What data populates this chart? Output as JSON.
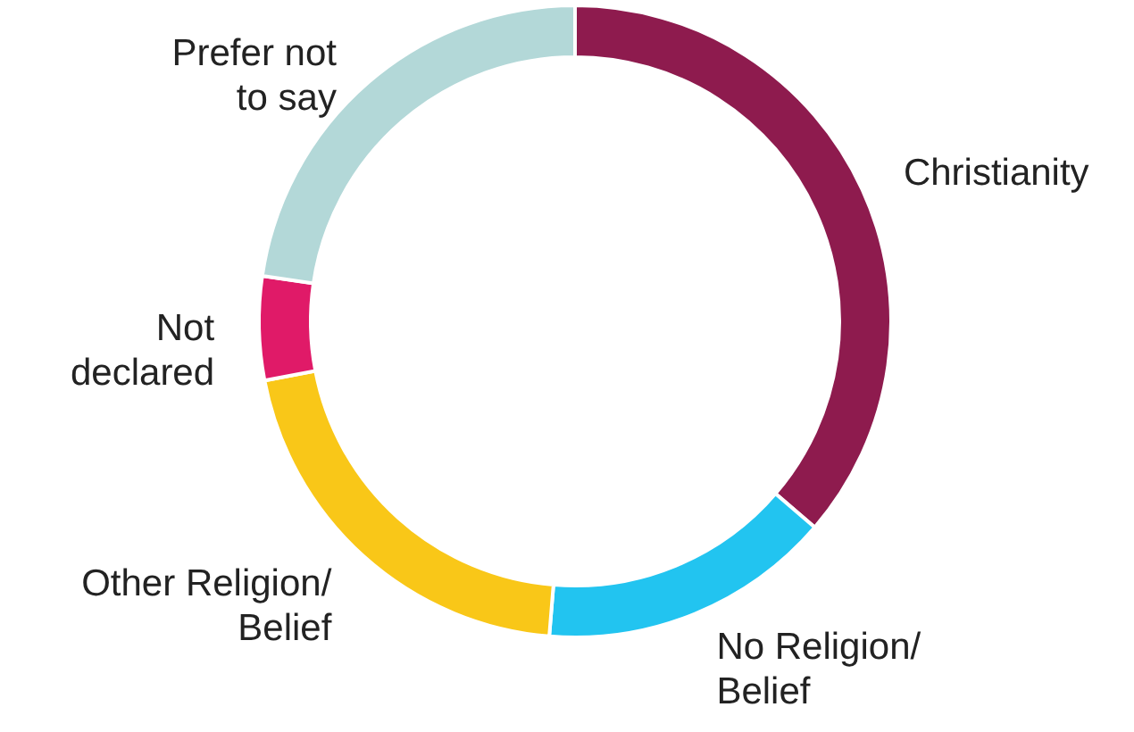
{
  "chart_data": {
    "type": "donut",
    "categories": [
      "Christianity",
      "No Religion/\nBelief",
      "Other Religion/\nBelief",
      "Not\ndeclared",
      "Prefer not\nto say"
    ],
    "values": [
      36.3,
      15,
      20.7,
      5.3,
      22.7
    ],
    "colors": [
      "#8e1b4e",
      "#22c4f0",
      "#f9c718",
      "#e01a68",
      "#b3d8d8"
    ]
  }
}
